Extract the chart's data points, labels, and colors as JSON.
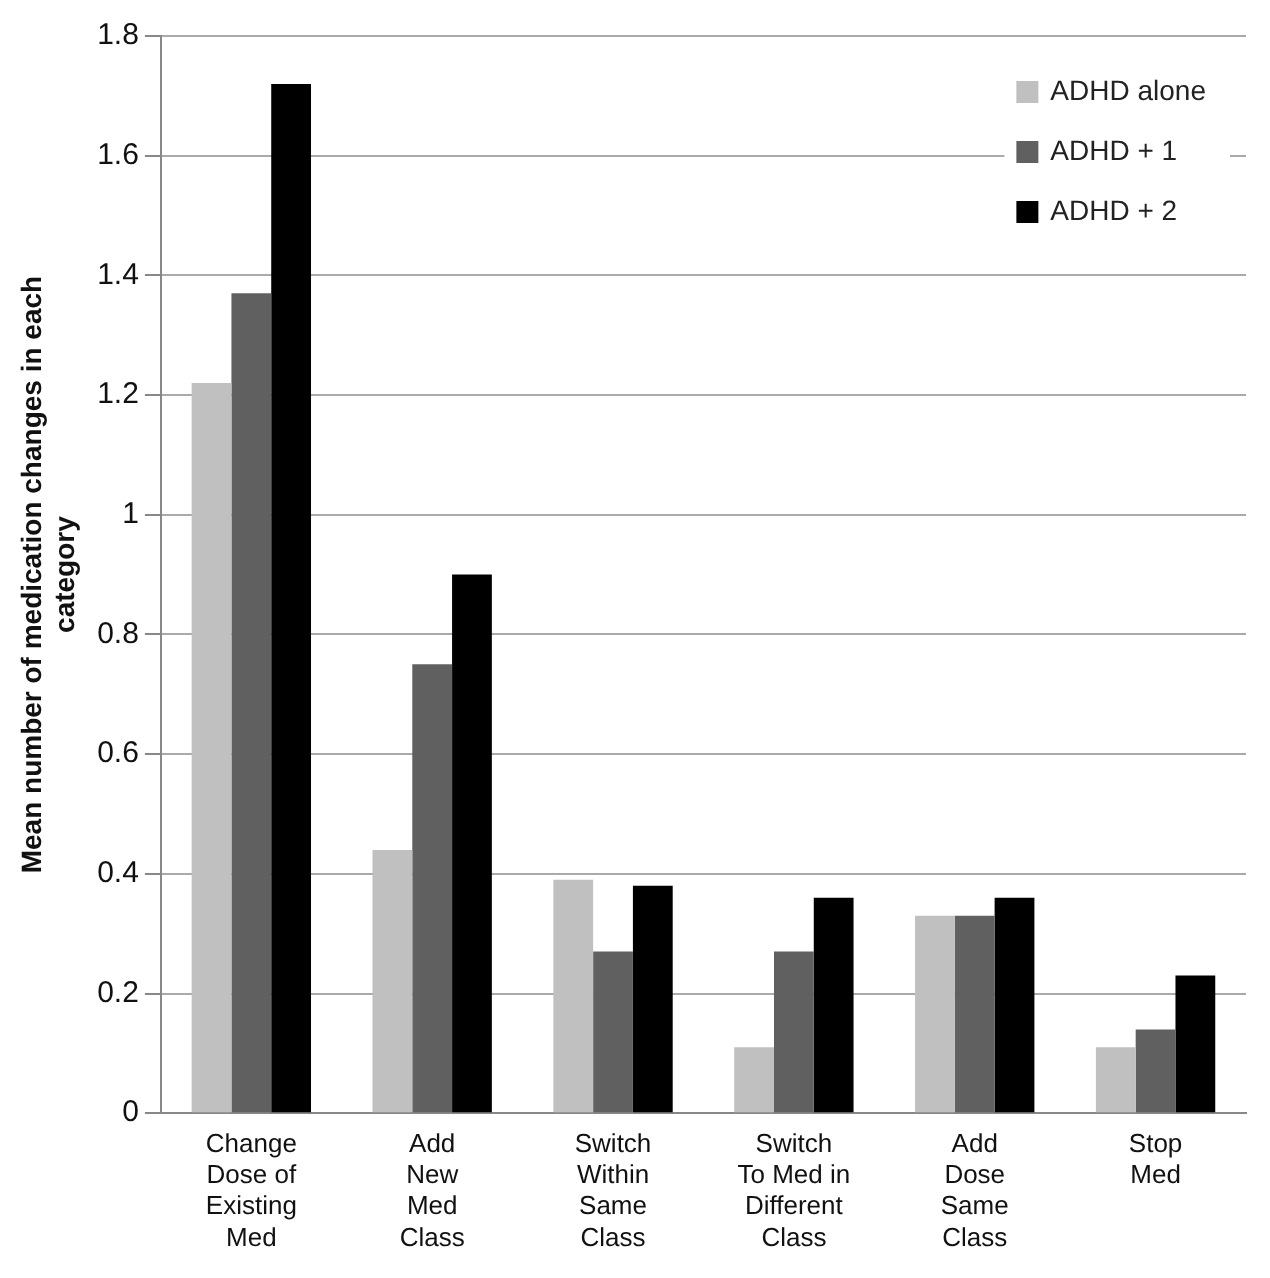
{
  "chart_data": {
    "type": "bar",
    "ylabel": "Mean number of medication changes in each category",
    "categories": [
      "Change\nDose of\nExisting\nMed",
      "Add\nNew\nMed\nClass",
      "Switch\nWithin\nSame\nClass",
      "Switch\nTo Med in\nDifferent\nClass",
      "Add\nDose\nSame\nClass",
      "Stop\nMed"
    ],
    "series": [
      {
        "name": "ADHD alone",
        "color": "#c0c0c0",
        "values": [
          1.22,
          0.44,
          0.39,
          0.11,
          0.33,
          0.11
        ]
      },
      {
        "name": "ADHD + 1",
        "color": "#606060",
        "values": [
          1.37,
          0.75,
          0.27,
          0.27,
          0.33,
          0.14
        ]
      },
      {
        "name": "ADHD + 2",
        "color": "#000000",
        "values": [
          1.72,
          0.9,
          0.38,
          0.36,
          0.36,
          0.23
        ]
      }
    ],
    "ylim": [
      0,
      1.8
    ],
    "yticks": [
      0,
      0.2,
      0.4,
      0.6,
      0.8,
      1,
      1.2,
      1.4,
      1.6,
      1.8
    ],
    "grid": "y",
    "legend": "top right"
  }
}
